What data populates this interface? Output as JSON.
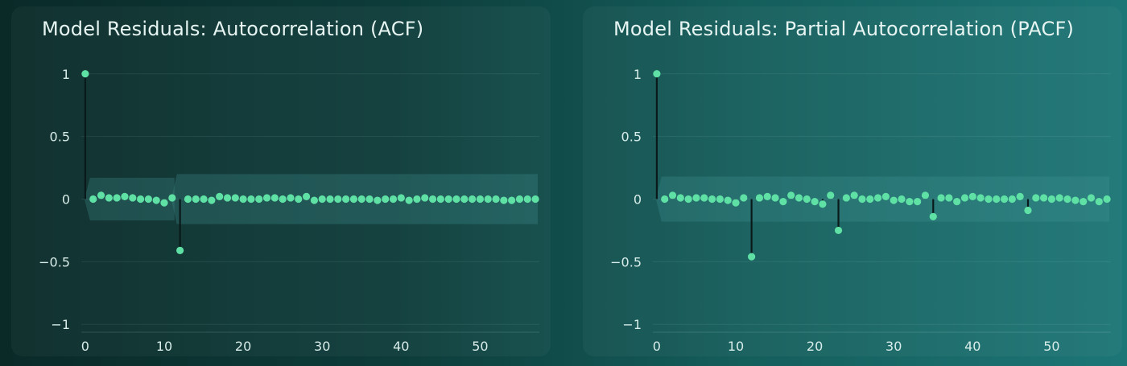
{
  "colors": {
    "marker": "#5fe0a4",
    "stem": "#0a1a1a",
    "band": "rgba(70,150,150,0.28)",
    "grid": "rgba(190,230,225,0.10)",
    "text": "#d8ece9"
  },
  "chart_data": [
    {
      "type": "scatter",
      "title": "Model Residuals: Autocorrelation (ACF)",
      "xlabel": "",
      "ylabel": "",
      "xlim": [
        -0.5,
        57.5
      ],
      "ylim": [
        -1.05,
        1.05
      ],
      "x_ticks": [
        0,
        10,
        20,
        30,
        40,
        50
      ],
      "x_tick_labels": [
        "0",
        "10",
        "20",
        "30",
        "40",
        "50"
      ],
      "y_ticks": [
        1,
        0.5,
        0,
        -0.5,
        -1
      ],
      "y_tick_labels": [
        "1",
        "0.5",
        "0",
        "−0.5",
        "−1"
      ],
      "grid": true,
      "confidence_band": {
        "description": "shaded significance band",
        "segments": [
          {
            "from_lag": 1,
            "to_lag": 11,
            "upper": 0.17,
            "lower": -0.17
          },
          {
            "from_lag": 12,
            "to_lag": 57,
            "upper": 0.2,
            "lower": -0.2
          }
        ]
      },
      "x": [
        0,
        1,
        2,
        3,
        4,
        5,
        6,
        7,
        8,
        9,
        10,
        11,
        12,
        13,
        14,
        15,
        16,
        17,
        18,
        19,
        20,
        21,
        22,
        23,
        24,
        25,
        26,
        27,
        28,
        29,
        30,
        31,
        32,
        33,
        34,
        35,
        36,
        37,
        38,
        39,
        40,
        41,
        42,
        43,
        44,
        45,
        46,
        47,
        48,
        49,
        50,
        51,
        52,
        53,
        54,
        55,
        56,
        57
      ],
      "values": [
        1.0,
        0.0,
        0.03,
        0.01,
        0.01,
        0.02,
        0.01,
        0.0,
        0.0,
        -0.01,
        -0.03,
        0.01,
        -0.41,
        0.0,
        0.0,
        0.0,
        -0.01,
        0.02,
        0.01,
        0.01,
        0.0,
        0.0,
        0.0,
        0.01,
        0.01,
        0.0,
        0.01,
        0.0,
        0.02,
        -0.01,
        0.0,
        0.0,
        0.0,
        0.0,
        0.0,
        0.0,
        0.0,
        -0.01,
        0.0,
        0.0,
        0.01,
        -0.01,
        0.0,
        0.01,
        0.0,
        0.0,
        0.0,
        0.0,
        0.0,
        0.0,
        0.0,
        0.0,
        0.0,
        -0.01,
        -0.01,
        0.0,
        0.0,
        0.0
      ]
    },
    {
      "type": "scatter",
      "title": "Model Residuals: Partial Autocorrelation (PACF)",
      "xlabel": "",
      "ylabel": "",
      "xlim": [
        -0.5,
        57.5
      ],
      "ylim": [
        -1.05,
        1.05
      ],
      "x_ticks": [
        0,
        10,
        20,
        30,
        40,
        50
      ],
      "x_tick_labels": [
        "0",
        "10",
        "20",
        "30",
        "40",
        "50"
      ],
      "y_ticks": [
        1,
        0.5,
        0,
        -0.5,
        -1
      ],
      "y_tick_labels": [
        "1",
        "0.5",
        "0",
        "−0.5",
        "−1"
      ],
      "grid": true,
      "confidence_band": {
        "description": "shaded significance band",
        "segments": [
          {
            "from_lag": 1,
            "to_lag": 57,
            "upper": 0.18,
            "lower": -0.18
          }
        ]
      },
      "x": [
        0,
        1,
        2,
        3,
        4,
        5,
        6,
        7,
        8,
        9,
        10,
        11,
        12,
        13,
        14,
        15,
        16,
        17,
        18,
        19,
        20,
        21,
        22,
        23,
        24,
        25,
        26,
        27,
        28,
        29,
        30,
        31,
        32,
        33,
        34,
        35,
        36,
        37,
        38,
        39,
        40,
        41,
        42,
        43,
        44,
        45,
        46,
        47,
        48,
        49,
        50,
        51,
        52,
        53,
        54,
        55,
        56,
        57
      ],
      "values": [
        1.0,
        0.0,
        0.03,
        0.01,
        0.0,
        0.01,
        0.01,
        0.0,
        0.0,
        -0.01,
        -0.03,
        0.01,
        -0.46,
        0.01,
        0.02,
        0.01,
        -0.02,
        0.03,
        0.01,
        0.0,
        -0.02,
        -0.04,
        0.03,
        -0.25,
        0.01,
        0.03,
        0.0,
        0.0,
        0.01,
        0.02,
        -0.01,
        0.0,
        -0.02,
        -0.02,
        0.03,
        -0.14,
        0.01,
        0.01,
        -0.02,
        0.01,
        0.02,
        0.01,
        0.0,
        0.0,
        0.0,
        0.0,
        0.02,
        -0.09,
        0.01,
        0.01,
        0.0,
        0.01,
        0.0,
        -0.01,
        -0.02,
        0.01,
        -0.02,
        0.0
      ]
    }
  ]
}
